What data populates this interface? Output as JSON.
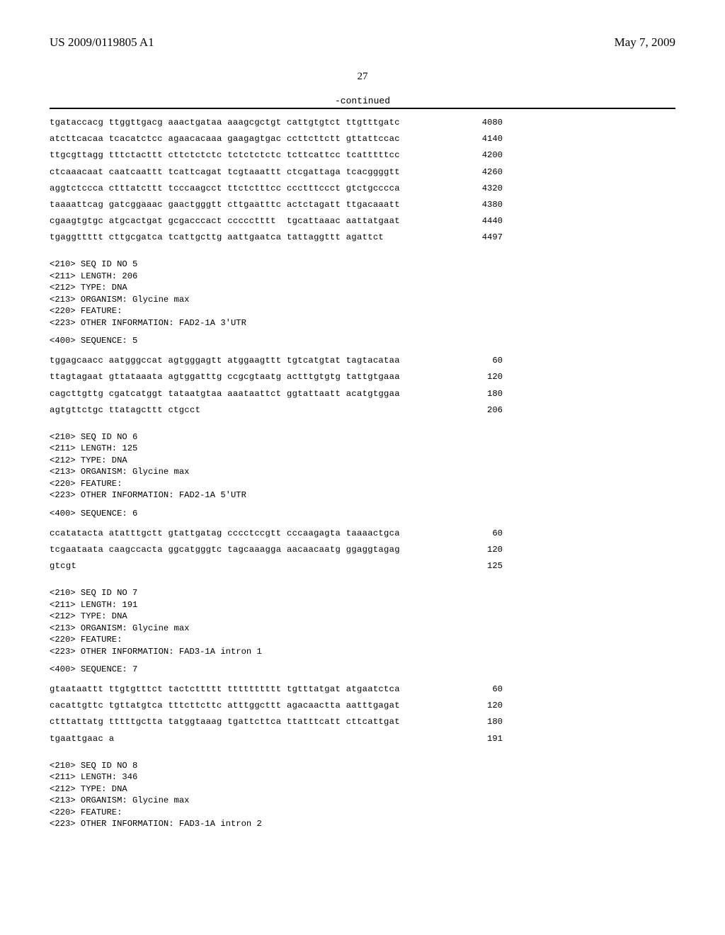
{
  "header": {
    "pub_number": "US 2009/0119805 A1",
    "pub_date": "May 7, 2009"
  },
  "page_number": "27",
  "continued_label": "-continued",
  "blocks": [
    {
      "type": "seq_lines",
      "lines": [
        {
          "text": "tgataccacg ttggttgacg aaactgataa aaagcgctgt cattgtgtct ttgtttgatc",
          "num": "4080"
        },
        {
          "text": "atcttcacaa tcacatctcc agaacacaaa gaagagtgac ccttcttctt gttattccac",
          "num": "4140"
        },
        {
          "text": "ttgcgttagg tttctacttt cttctctctc tctctctctc tcttcattcc tcatttttcc",
          "num": "4200"
        },
        {
          "text": "ctcaaacaat caatcaattt tcattcagat tcgtaaattt ctcgattaga tcacggggtt",
          "num": "4260"
        },
        {
          "text": "aggtctccca ctttatcttt tcccaagcct ttctctttcc ccctttccct gtctgcccca",
          "num": "4320"
        },
        {
          "text": "taaaattcag gatcggaaac gaactgggtt cttgaatttc actctagatt ttgacaaatt",
          "num": "4380"
        },
        {
          "text": "cgaagtgtgc atgcactgat gcgacccact ccccctttt  tgcattaaac aattatgaat",
          "num": "4440"
        },
        {
          "text": "tgaggttttt cttgcgatca tcattgcttg aattgaatca tattaggttt agattct",
          "num": "4497"
        }
      ]
    },
    {
      "type": "seq_header",
      "lines": [
        "<210> SEQ ID NO 5",
        "<211> LENGTH: 206",
        "<212> TYPE: DNA",
        "<213> ORGANISM: Glycine max",
        "<220> FEATURE:",
        "<223> OTHER INFORMATION: FAD2-1A 3'UTR"
      ]
    },
    {
      "type": "seq_label",
      "text": "<400> SEQUENCE: 5"
    },
    {
      "type": "seq_lines",
      "lines": [
        {
          "text": "tggagcaacc aatgggccat agtgggagtt atggaagttt tgtcatgtat tagtacataa",
          "num": "60"
        },
        {
          "text": "ttagtagaat gttataaata agtggatttg ccgcgtaatg actttgtgtg tattgtgaaa",
          "num": "120"
        },
        {
          "text": "cagcttgttg cgatcatggt tataatgtaa aaataattct ggtattaatt acatgtggaa",
          "num": "180"
        },
        {
          "text": "agtgttctgc ttatagcttt ctgcct",
          "num": "206"
        }
      ]
    },
    {
      "type": "seq_header",
      "lines": [
        "<210> SEQ ID NO 6",
        "<211> LENGTH: 125",
        "<212> TYPE: DNA",
        "<213> ORGANISM: Glycine max",
        "<220> FEATURE:",
        "<223> OTHER INFORMATION: FAD2-1A 5'UTR"
      ]
    },
    {
      "type": "seq_label",
      "text": "<400> SEQUENCE: 6"
    },
    {
      "type": "seq_lines",
      "lines": [
        {
          "text": "ccatatacta atatttgctt gtattgatag cccctccgtt cccaagagta taaaactgca",
          "num": "60"
        },
        {
          "text": "tcgaataata caagccacta ggcatgggtc tagcaaagga aacaacaatg ggaggtagag",
          "num": "120"
        },
        {
          "text": "gtcgt",
          "num": "125"
        }
      ]
    },
    {
      "type": "seq_header",
      "lines": [
        "<210> SEQ ID NO 7",
        "<211> LENGTH: 191",
        "<212> TYPE: DNA",
        "<213> ORGANISM: Glycine max",
        "<220> FEATURE:",
        "<223> OTHER INFORMATION: FAD3-1A intron 1"
      ]
    },
    {
      "type": "seq_label",
      "text": "<400> SEQUENCE: 7"
    },
    {
      "type": "seq_lines",
      "lines": [
        {
          "text": "gtaataattt ttgtgtttct tactcttttt tttttttttt tgtttatgat atgaatctca",
          "num": "60"
        },
        {
          "text": "cacattgttc tgttatgtca tttcttcttc atttggcttt agacaactta aatttgagat",
          "num": "120"
        },
        {
          "text": "ctttattatg tttttgctta tatggtaaag tgattcttca ttatttcatt cttcattgat",
          "num": "180"
        },
        {
          "text": "tgaattgaac a",
          "num": "191"
        }
      ]
    },
    {
      "type": "seq_header",
      "lines": [
        "<210> SEQ ID NO 8",
        "<211> LENGTH: 346",
        "<212> TYPE: DNA",
        "<213> ORGANISM: Glycine max",
        "<220> FEATURE:",
        "<223> OTHER INFORMATION: FAD3-1A intron 2"
      ]
    }
  ]
}
